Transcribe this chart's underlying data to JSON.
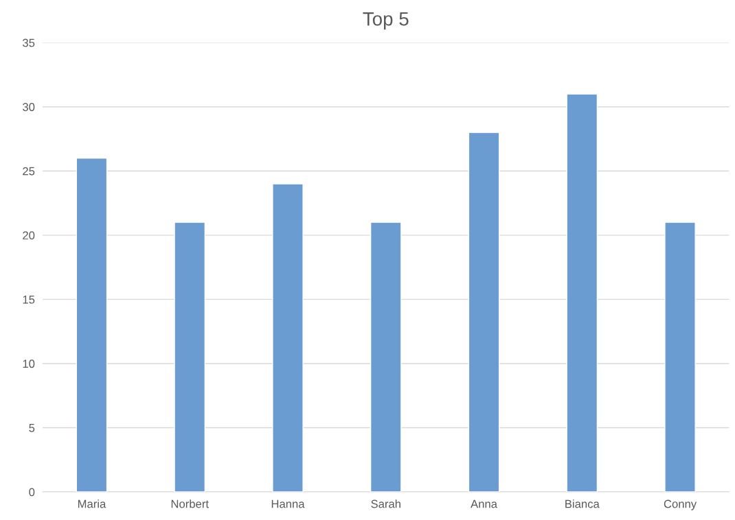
{
  "chart_data": {
    "type": "bar",
    "title": "Top 5",
    "categories": [
      "Maria",
      "Norbert",
      "Hanna",
      "Sarah",
      "Anna",
      "Bianca",
      "Conny"
    ],
    "values": [
      26,
      21,
      24,
      21,
      28,
      31,
      21
    ],
    "color": "#6a9bd1",
    "ylim": [
      0,
      35
    ],
    "yticks": [
      0,
      5,
      10,
      15,
      20,
      25,
      30,
      35
    ],
    "grid": "y"
  }
}
